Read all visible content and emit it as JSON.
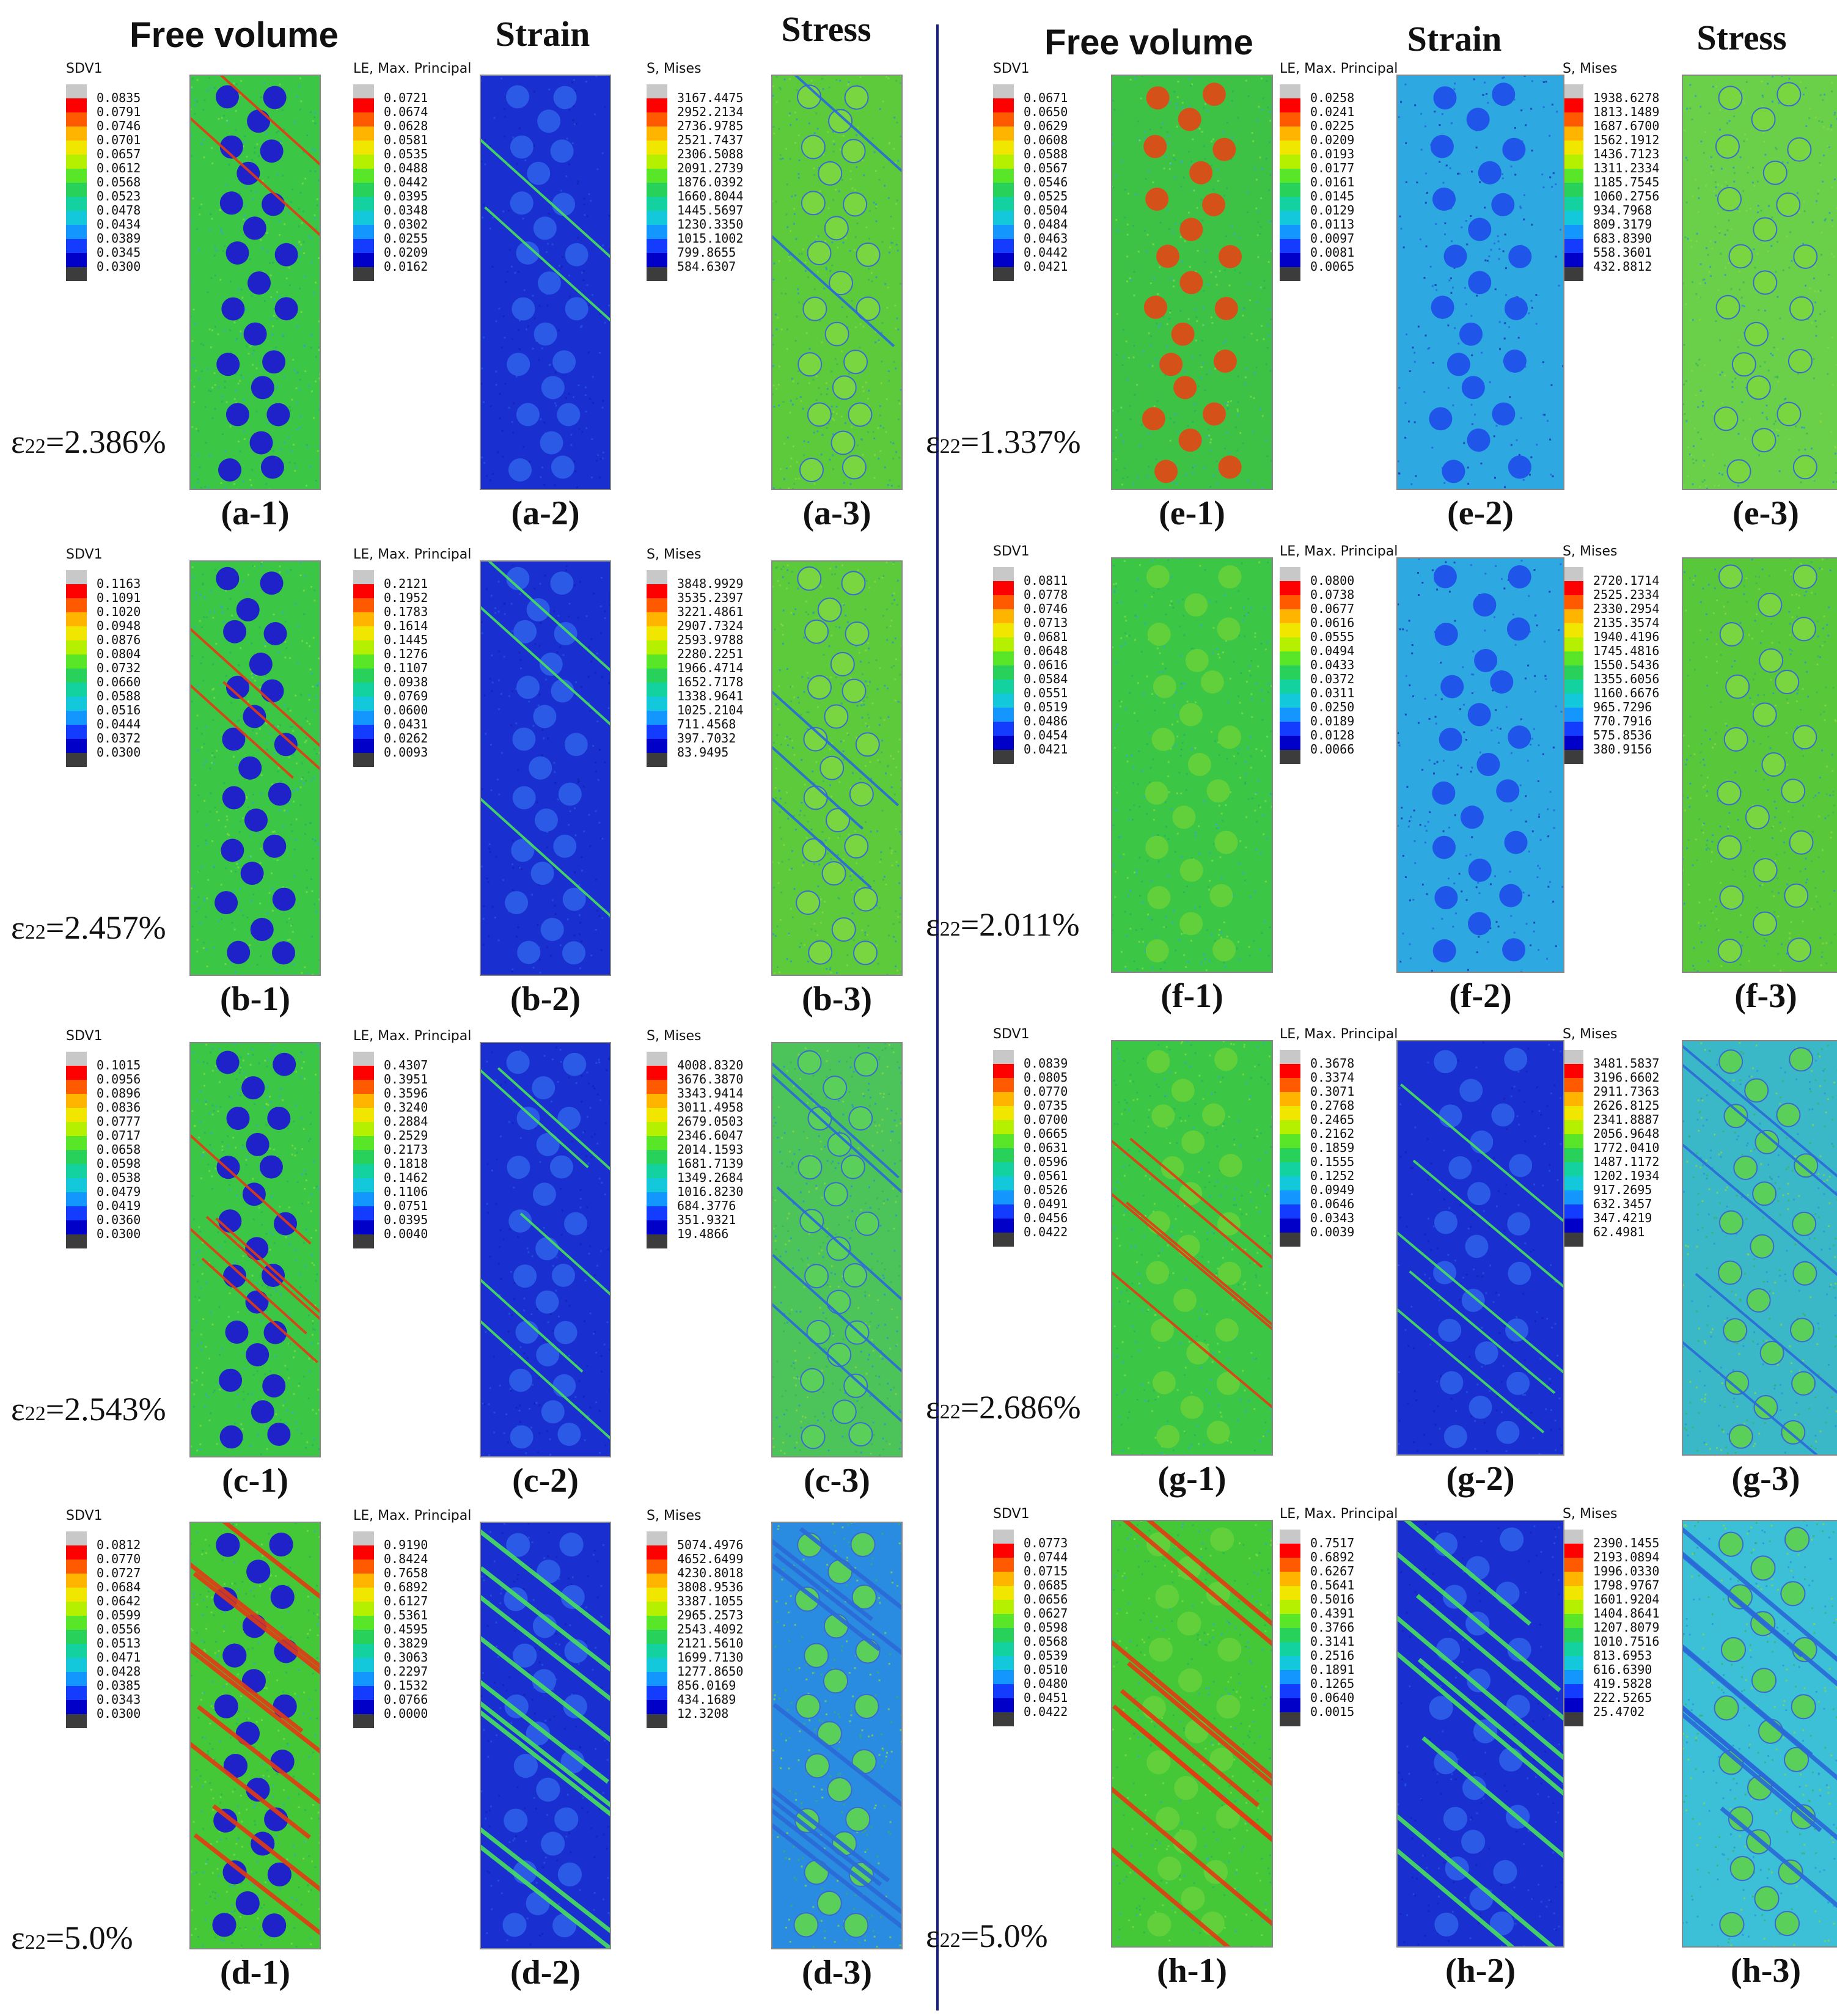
{
  "column_titles": {
    "left": {
      "free_volume": "Free volume",
      "strain": "Strain",
      "stress": "Stress"
    },
    "right": {
      "free_volume": "Free volume",
      "strain": "Strain",
      "stress": "Stress"
    }
  },
  "legend_titles": {
    "free_volume": "SDV1",
    "strain": "LE, Max. Principal",
    "stress": "S, Mises"
  },
  "strain_symbol": "ε",
  "strain_subscript": "22",
  "colors": {
    "matrix_fv": "#3cc646",
    "particle_fv_low": "#1f22c8",
    "particle_fv_high": "#d4521a",
    "strain_bg": "#1a2fd0",
    "stress_bg": "#58c83a",
    "band": "#e23c14",
    "divider": "#1a1f7a"
  },
  "legend_palette": [
    "#c8c8c8",
    "#ff0000",
    "#ff5a00",
    "#ffb400",
    "#f0e600",
    "#b4f000",
    "#5ae628",
    "#28d25a",
    "#14d2a0",
    "#14c8dc",
    "#1496ff",
    "#143cff",
    "#0000c8",
    "#3c3c3c"
  ],
  "rows": [
    {
      "id": "a",
      "strain": "=2.386%",
      "pattern": {
        "particles": "blue",
        "bands": "sparse",
        "angle": -42,
        "stress_bg": "#5cca3a"
      },
      "free_volume": {
        "label": "(a-1)",
        "values": [
          "0.0835",
          "0.0791",
          "0.0746",
          "0.0701",
          "0.0657",
          "0.0612",
          "0.0568",
          "0.0523",
          "0.0478",
          "0.0434",
          "0.0389",
          "0.0345",
          "0.0300"
        ]
      },
      "strain_field": {
        "label": "(a-2)",
        "values": [
          "0.0721",
          "0.0674",
          "0.0628",
          "0.0581",
          "0.0535",
          "0.0488",
          "0.0442",
          "0.0395",
          "0.0348",
          "0.0302",
          "0.0255",
          "0.0209",
          "0.0162"
        ]
      },
      "stress": {
        "label": "(a-3)",
        "values": [
          "3167.4475",
          "2952.2134",
          "2736.9785",
          "2521.7437",
          "2306.5088",
          "2091.2739",
          "1876.0392",
          "1660.8044",
          "1445.5697",
          "1230.3350",
          "1015.1002",
          "799.8655",
          "584.6307"
        ]
      }
    },
    {
      "id": "e",
      "strain": "=1.337%",
      "pattern": {
        "particles": "red",
        "bands": "none",
        "angle": -40,
        "stress_bg": "#6ad04a"
      },
      "free_volume": {
        "label": "(e-1)",
        "values": [
          "0.0671",
          "0.0650",
          "0.0629",
          "0.0608",
          "0.0588",
          "0.0567",
          "0.0546",
          "0.0525",
          "0.0504",
          "0.0484",
          "0.0463",
          "0.0442",
          "0.0421"
        ]
      },
      "strain_field": {
        "label": "(e-2)",
        "values": [
          "0.0258",
          "0.0241",
          "0.0225",
          "0.0209",
          "0.0193",
          "0.0177",
          "0.0161",
          "0.0145",
          "0.0129",
          "0.0113",
          "0.0097",
          "0.0081",
          "0.0065"
        ]
      },
      "stress": {
        "label": "(e-3)",
        "values": [
          "1938.6278",
          "1813.1489",
          "1687.6700",
          "1562.1912",
          "1436.7123",
          "1311.2334",
          "1185.7545",
          "1060.2756",
          "934.7968",
          "809.3179",
          "683.8390",
          "558.3601",
          "432.8812"
        ]
      }
    },
    {
      "id": "b",
      "strain": "=2.457%",
      "pattern": {
        "particles": "blue",
        "bands": "few",
        "angle": -42,
        "stress_bg": "#5cca3a"
      },
      "free_volume": {
        "label": "(b-1)",
        "values": [
          "0.1163",
          "0.1091",
          "0.1020",
          "0.0948",
          "0.0876",
          "0.0804",
          "0.0732",
          "0.0660",
          "0.0588",
          "0.0516",
          "0.0444",
          "0.0372",
          "0.0300"
        ]
      },
      "strain_field": {
        "label": "(b-2)",
        "values": [
          "0.2121",
          "0.1952",
          "0.1783",
          "0.1614",
          "0.1445",
          "0.1276",
          "0.1107",
          "0.0938",
          "0.0769",
          "0.0600",
          "0.0431",
          "0.0262",
          "0.0093"
        ]
      },
      "stress": {
        "label": "(b-3)",
        "values": [
          "3848.9929",
          "3535.2397",
          "3221.4861",
          "2907.7324",
          "2593.9788",
          "2280.2251",
          "1966.4714",
          "1652.7178",
          "1338.9641",
          "1025.2104",
          "711.4568",
          "397.7032",
          "83.9495"
        ]
      }
    },
    {
      "id": "f",
      "strain": "=2.011%",
      "pattern": {
        "particles": "green",
        "bands": "none",
        "angle": -40,
        "stress_bg": "#58c83a"
      },
      "free_volume": {
        "label": "(f-1)",
        "values": [
          "0.0811",
          "0.0778",
          "0.0746",
          "0.0713",
          "0.0681",
          "0.0648",
          "0.0616",
          "0.0584",
          "0.0551",
          "0.0519",
          "0.0486",
          "0.0454",
          "0.0421"
        ]
      },
      "strain_field": {
        "label": "(f-2)",
        "values": [
          "0.0800",
          "0.0738",
          "0.0677",
          "0.0616",
          "0.0555",
          "0.0494",
          "0.0433",
          "0.0372",
          "0.0311",
          "0.0250",
          "0.0189",
          "0.0128",
          "0.0066"
        ]
      },
      "stress": {
        "label": "(f-3)",
        "values": [
          "2720.1714",
          "2525.2334",
          "2330.2954",
          "2135.3574",
          "1940.4196",
          "1745.4816",
          "1550.5436",
          "1355.6056",
          "1160.6676",
          "965.7296",
          "770.7916",
          "575.8536",
          "380.9156"
        ]
      }
    },
    {
      "id": "c",
      "strain": "=2.543%",
      "pattern": {
        "particles": "blue",
        "bands": "medium",
        "angle": -42,
        "stress_bg": "#4cc45a"
      },
      "free_volume": {
        "label": "(c-1)",
        "values": [
          "0.1015",
          "0.0956",
          "0.0896",
          "0.0836",
          "0.0777",
          "0.0717",
          "0.0658",
          "0.0598",
          "0.0538",
          "0.0479",
          "0.0419",
          "0.0360",
          "0.0300"
        ]
      },
      "strain_field": {
        "label": "(c-2)",
        "values": [
          "0.4307",
          "0.3951",
          "0.3596",
          "0.3240",
          "0.2884",
          "0.2529",
          "0.2173",
          "0.1818",
          "0.1462",
          "0.1106",
          "0.0751",
          "0.0395",
          "0.0040"
        ]
      },
      "stress": {
        "label": "(c-3)",
        "values": [
          "4008.8320",
          "3676.3870",
          "3343.9414",
          "3011.4958",
          "2679.0503",
          "2346.6047",
          "2014.1593",
          "1681.7139",
          "1349.2684",
          "1016.8230",
          "684.3776",
          "351.9321",
          "19.4866"
        ]
      }
    },
    {
      "id": "g",
      "strain": "=2.686%",
      "pattern": {
        "particles": "green",
        "bands": "medium",
        "angle": -40,
        "stress_bg": "#3ab8c8"
      },
      "free_volume": {
        "label": "(g-1)",
        "values": [
          "0.0839",
          "0.0805",
          "0.0770",
          "0.0735",
          "0.0700",
          "0.0665",
          "0.0631",
          "0.0596",
          "0.0561",
          "0.0526",
          "0.0491",
          "0.0456",
          "0.0422"
        ]
      },
      "strain_field": {
        "label": "(g-2)",
        "values": [
          "0.3678",
          "0.3374",
          "0.3071",
          "0.2768",
          "0.2465",
          "0.2162",
          "0.1859",
          "0.1555",
          "0.1252",
          "0.0949",
          "0.0646",
          "0.0343",
          "0.0039"
        ]
      },
      "stress": {
        "label": "(g-3)",
        "values": [
          "3481.5837",
          "3196.6602",
          "2911.7363",
          "2626.8125",
          "2341.8887",
          "2056.9648",
          "1772.0410",
          "1487.1172",
          "1202.1934",
          "917.2695",
          "632.3457",
          "347.4219",
          "62.4981"
        ]
      }
    },
    {
      "id": "d",
      "strain": "=5.0%",
      "pattern": {
        "particles": "blue",
        "bands": "dense",
        "angle": -38,
        "stress_bg": "#2a8ce0"
      },
      "free_volume": {
        "label": "(d-1)",
        "values": [
          "0.0812",
          "0.0770",
          "0.0727",
          "0.0684",
          "0.0642",
          "0.0599",
          "0.0556",
          "0.0513",
          "0.0471",
          "0.0428",
          "0.0385",
          "0.0343",
          "0.0300"
        ]
      },
      "strain_field": {
        "label": "(d-2)",
        "values": [
          "0.9190",
          "0.8424",
          "0.7658",
          "0.6892",
          "0.6127",
          "0.5361",
          "0.4595",
          "0.3829",
          "0.3063",
          "0.2297",
          "0.1532",
          "0.0766",
          "0.0000"
        ]
      },
      "stress": {
        "label": "(d-3)",
        "values": [
          "5074.4976",
          "4652.6499",
          "4230.8018",
          "3808.9536",
          "3387.1055",
          "2965.2573",
          "2543.4092",
          "2121.5610",
          "1699.7130",
          "1277.8650",
          "856.0169",
          "434.1689",
          "12.3208"
        ]
      }
    },
    {
      "id": "h",
      "strain": "=5.0%",
      "pattern": {
        "particles": "green",
        "bands": "dense",
        "angle": -40,
        "stress_bg": "#3cc0d8"
      },
      "free_volume": {
        "label": "(h-1)",
        "values": [
          "0.0773",
          "0.0744",
          "0.0715",
          "0.0685",
          "0.0656",
          "0.0627",
          "0.0598",
          "0.0568",
          "0.0539",
          "0.0510",
          "0.0480",
          "0.0451",
          "0.0422"
        ]
      },
      "strain_field": {
        "label": "(h-2)",
        "values": [
          "0.7517",
          "0.6892",
          "0.6267",
          "0.5641",
          "0.5016",
          "0.4391",
          "0.3766",
          "0.3141",
          "0.2516",
          "0.1891",
          "0.1265",
          "0.0640",
          "0.0015"
        ]
      },
      "stress": {
        "label": "(h-3)",
        "values": [
          "2390.1455",
          "2193.0894",
          "1996.0330",
          "1798.9767",
          "1601.9204",
          "1404.8641",
          "1207.8079",
          "1010.7516",
          "813.6953",
          "616.6390",
          "419.5828",
          "222.5265",
          "25.4702"
        ]
      }
    }
  ]
}
